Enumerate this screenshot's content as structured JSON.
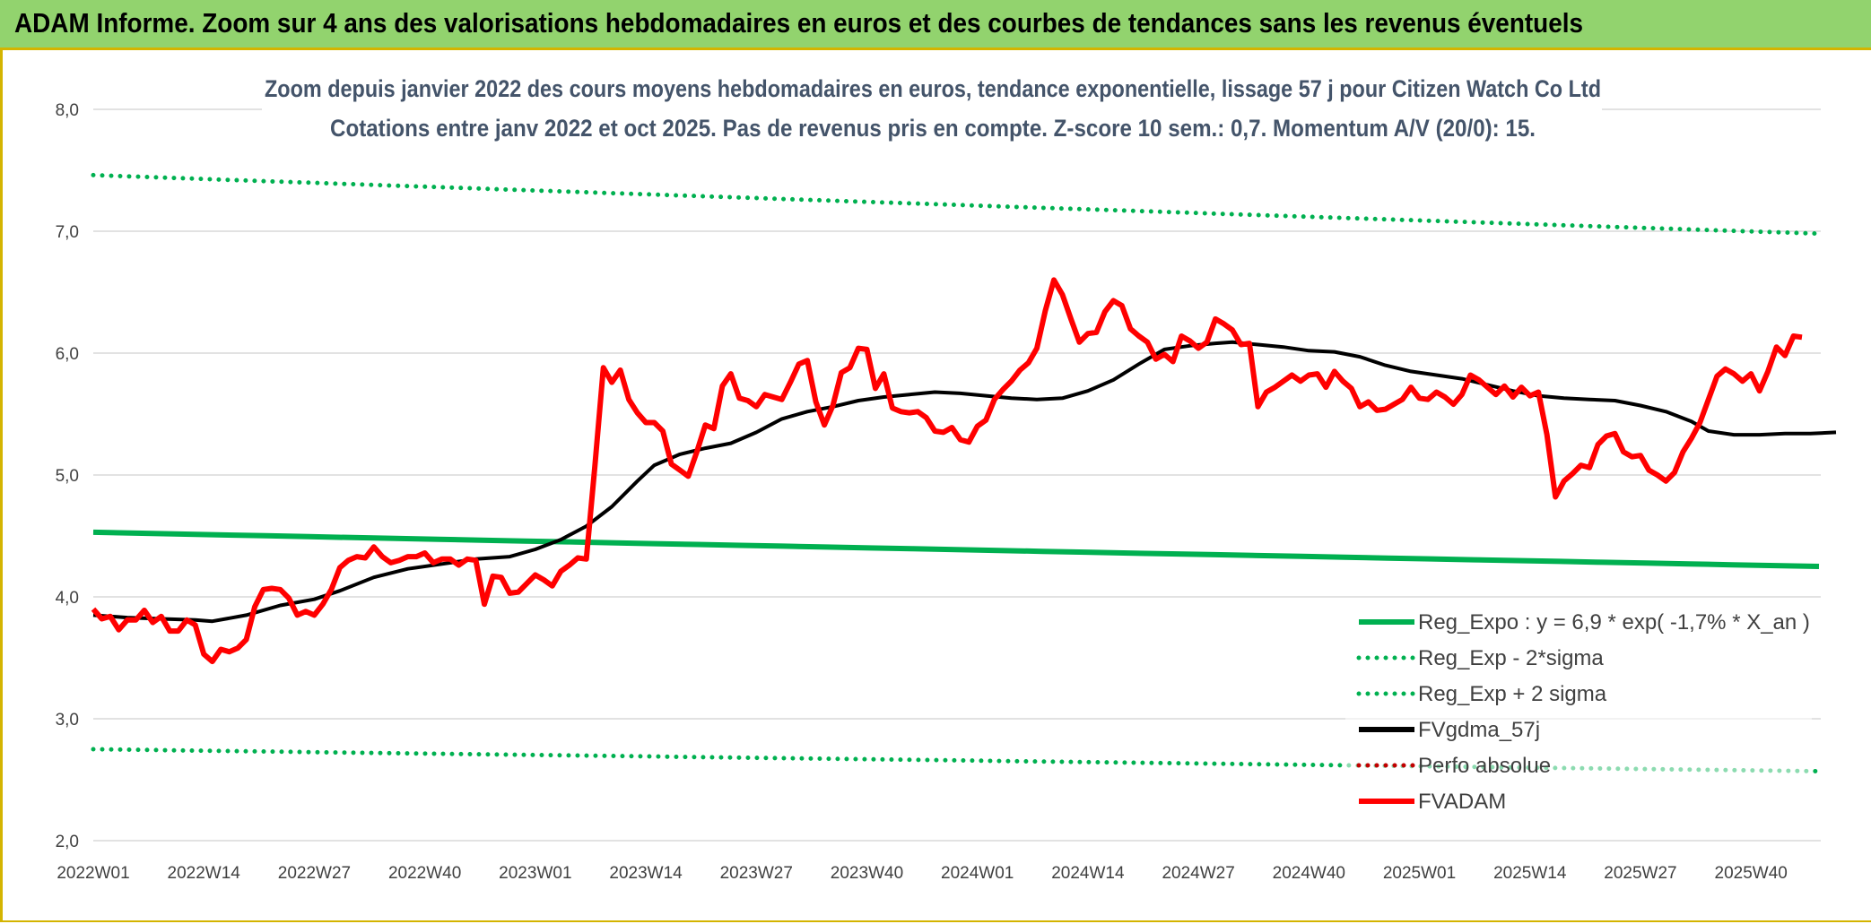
{
  "banner": {
    "title": "ADAM Informe. Zoom sur 4 ans des valorisations hebdomadaires en euros et des courbes de tendances sans les revenus éventuels"
  },
  "colors": {
    "banner_bg": "#92d36e",
    "accent_border": "#d4b400",
    "trend_green": "#00b050",
    "smooth_black": "#000000",
    "price_red": "#ff0000",
    "title_text": "#44546a"
  },
  "chart_data": {
    "type": "line",
    "title_line1": "Zoom depuis janvier 2022 des cours moyens hebdomadaires en euros, tendance exponentielle, lissage 57 j pour Citizen Watch Co Ltd",
    "title_line2": "Cotations entre janv 2022 et oct 2025. Pas de revenus pris en compte. Z-score 10 sem.: 0,7. Momentum A/V (20/0): 15.",
    "xlabel": "",
    "ylabel": "",
    "ylim": [
      2.0,
      8.0
    ],
    "y_ticks": [
      "2,0",
      "3,0",
      "4,0",
      "5,0",
      "6,0",
      "7,0",
      "8,0"
    ],
    "x_ticks": [
      "2022W01",
      "2022W14",
      "2022W27",
      "2022W40",
      "2023W01",
      "2023W14",
      "2023W27",
      "2023W40",
      "2024W01",
      "2024W14",
      "2024W27",
      "2024W40",
      "2025W01",
      "2025W14",
      "2025W27",
      "2025W40"
    ],
    "weeks_total": 203,
    "grid": "horizontal",
    "legend_position": "bottom-right",
    "series": [
      {
        "name": "Reg_Expo : y = 6,9 * exp( -1,7% *  X_an )",
        "style": "solid",
        "color": "#00b050",
        "start": 4.53,
        "end": 4.25
      },
      {
        "name": "Reg_Exp - 2*sigma",
        "style": "dotted",
        "color": "#00b050",
        "start": 2.75,
        "end": 2.57
      },
      {
        "name": "Reg_Exp + 2 sigma",
        "style": "dotted",
        "color": "#00b050",
        "start": 7.46,
        "end": 6.98
      },
      {
        "name": "FVgdma_57j",
        "style": "solid",
        "color": "#000000",
        "points": [
          [
            0,
            3.85
          ],
          [
            4,
            3.83
          ],
          [
            8,
            3.82
          ],
          [
            12,
            3.81
          ],
          [
            14,
            3.8
          ],
          [
            18,
            3.85
          ],
          [
            22,
            3.93
          ],
          [
            26,
            3.98
          ],
          [
            29,
            4.05
          ],
          [
            33,
            4.16
          ],
          [
            37,
            4.23
          ],
          [
            41,
            4.27
          ],
          [
            45,
            4.31
          ],
          [
            49,
            4.33
          ],
          [
            52,
            4.39
          ],
          [
            55,
            4.47
          ],
          [
            58,
            4.58
          ],
          [
            61,
            4.74
          ],
          [
            64,
            4.95
          ],
          [
            66,
            5.08
          ],
          [
            69,
            5.17
          ],
          [
            72,
            5.22
          ],
          [
            75,
            5.26
          ],
          [
            78,
            5.35
          ],
          [
            81,
            5.46
          ],
          [
            84,
            5.52
          ],
          [
            87,
            5.56
          ],
          [
            90,
            5.61
          ],
          [
            93,
            5.64
          ],
          [
            96,
            5.66
          ],
          [
            99,
            5.68
          ],
          [
            102,
            5.67
          ],
          [
            105,
            5.65
          ],
          [
            108,
            5.63
          ],
          [
            111,
            5.62
          ],
          [
            114,
            5.63
          ],
          [
            117,
            5.69
          ],
          [
            120,
            5.78
          ],
          [
            123,
            5.91
          ],
          [
            126,
            6.03
          ],
          [
            129,
            6.06
          ],
          [
            132,
            6.08
          ],
          [
            134,
            6.09
          ],
          [
            137,
            6.07
          ],
          [
            140,
            6.05
          ],
          [
            143,
            6.02
          ],
          [
            146,
            6.01
          ],
          [
            149,
            5.97
          ],
          [
            152,
            5.9
          ],
          [
            155,
            5.85
          ],
          [
            158,
            5.82
          ],
          [
            161,
            5.79
          ],
          [
            164,
            5.74
          ],
          [
            167,
            5.69
          ],
          [
            170,
            5.65
          ],
          [
            173,
            5.63
          ],
          [
            176,
            5.62
          ],
          [
            179,
            5.61
          ],
          [
            182,
            5.57
          ],
          [
            185,
            5.52
          ],
          [
            188,
            5.44
          ],
          [
            190,
            5.36
          ],
          [
            193,
            5.33
          ],
          [
            196,
            5.33
          ],
          [
            199,
            5.34
          ],
          [
            202,
            5.34
          ],
          [
            205,
            5.35
          ]
        ]
      },
      {
        "name": "Perfo absolue",
        "style": "dotted",
        "color": "#c00000",
        "hidden": true
      },
      {
        "name": "FVADAM",
        "style": "solid",
        "color": "#ff0000",
        "points": [
          [
            0,
            3.9
          ],
          [
            1,
            3.82
          ],
          [
            2,
            3.84
          ],
          [
            3,
            3.73
          ],
          [
            4,
            3.81
          ],
          [
            5,
            3.81
          ],
          [
            6,
            3.89
          ],
          [
            7,
            3.79
          ],
          [
            8,
            3.84
          ],
          [
            9,
            3.72
          ],
          [
            10,
            3.72
          ],
          [
            11,
            3.81
          ],
          [
            12,
            3.77
          ],
          [
            13,
            3.53
          ],
          [
            14,
            3.47
          ],
          [
            15,
            3.57
          ],
          [
            16,
            3.55
          ],
          [
            17,
            3.58
          ],
          [
            18,
            3.65
          ],
          [
            19,
            3.92
          ],
          [
            20,
            4.06
          ],
          [
            21,
            4.07
          ],
          [
            22,
            4.06
          ],
          [
            23,
            3.99
          ],
          [
            24,
            3.85
          ],
          [
            25,
            3.88
          ],
          [
            26,
            3.85
          ],
          [
            27,
            3.94
          ],
          [
            28,
            4.06
          ],
          [
            29,
            4.24
          ],
          [
            30,
            4.3
          ],
          [
            31,
            4.33
          ],
          [
            32,
            4.32
          ],
          [
            33,
            4.41
          ],
          [
            34,
            4.33
          ],
          [
            35,
            4.28
          ],
          [
            36,
            4.3
          ],
          [
            37,
            4.33
          ],
          [
            38,
            4.33
          ],
          [
            39,
            4.36
          ],
          [
            40,
            4.28
          ],
          [
            41,
            4.31
          ],
          [
            42,
            4.31
          ],
          [
            43,
            4.26
          ],
          [
            44,
            4.31
          ],
          [
            45,
            4.3
          ],
          [
            46,
            3.94
          ],
          [
            47,
            4.17
          ],
          [
            48,
            4.16
          ],
          [
            49,
            4.03
          ],
          [
            50,
            4.04
          ],
          [
            51,
            4.11
          ],
          [
            52,
            4.18
          ],
          [
            53,
            4.14
          ],
          [
            54,
            4.09
          ],
          [
            55,
            4.21
          ],
          [
            56,
            4.26
          ],
          [
            57,
            4.32
          ],
          [
            58,
            4.31
          ],
          [
            59,
            5.07
          ],
          [
            60,
            5.88
          ],
          [
            61,
            5.76
          ],
          [
            62,
            5.86
          ],
          [
            63,
            5.62
          ],
          [
            64,
            5.51
          ],
          [
            65,
            5.43
          ],
          [
            66,
            5.43
          ],
          [
            67,
            5.36
          ],
          [
            68,
            5.09
          ],
          [
            69,
            5.04
          ],
          [
            70,
            4.99
          ],
          [
            71,
            5.19
          ],
          [
            72,
            5.41
          ],
          [
            73,
            5.38
          ],
          [
            74,
            5.73
          ],
          [
            75,
            5.83
          ],
          [
            76,
            5.63
          ],
          [
            77,
            5.61
          ],
          [
            78,
            5.56
          ],
          [
            79,
            5.66
          ],
          [
            80,
            5.64
          ],
          [
            81,
            5.62
          ],
          [
            82,
            5.76
          ],
          [
            83,
            5.91
          ],
          [
            84,
            5.94
          ],
          [
            85,
            5.6
          ],
          [
            86,
            5.41
          ],
          [
            87,
            5.57
          ],
          [
            88,
            5.84
          ],
          [
            89,
            5.88
          ],
          [
            90,
            6.04
          ],
          [
            91,
            6.03
          ],
          [
            92,
            5.71
          ],
          [
            93,
            5.83
          ],
          [
            94,
            5.55
          ],
          [
            95,
            5.52
          ],
          [
            96,
            5.51
          ],
          [
            97,
            5.52
          ],
          [
            98,
            5.47
          ],
          [
            99,
            5.36
          ],
          [
            100,
            5.35
          ],
          [
            101,
            5.39
          ],
          [
            102,
            5.29
          ],
          [
            103,
            5.27
          ],
          [
            104,
            5.4
          ],
          [
            105,
            5.45
          ],
          [
            106,
            5.62
          ],
          [
            107,
            5.7
          ],
          [
            108,
            5.77
          ],
          [
            109,
            5.86
          ],
          [
            110,
            5.92
          ],
          [
            111,
            6.04
          ],
          [
            112,
            6.35
          ],
          [
            113,
            6.6
          ],
          [
            114,
            6.48
          ],
          [
            115,
            6.28
          ],
          [
            116,
            6.09
          ],
          [
            117,
            6.16
          ],
          [
            118,
            6.17
          ],
          [
            119,
            6.34
          ],
          [
            120,
            6.43
          ],
          [
            121,
            6.39
          ],
          [
            122,
            6.2
          ],
          [
            123,
            6.14
          ],
          [
            124,
            6.09
          ],
          [
            125,
            5.95
          ],
          [
            126,
            5.99
          ],
          [
            127,
            5.93
          ],
          [
            128,
            6.14
          ],
          [
            129,
            6.1
          ],
          [
            130,
            6.04
          ],
          [
            131,
            6.09
          ],
          [
            132,
            6.28
          ],
          [
            133,
            6.24
          ],
          [
            134,
            6.19
          ],
          [
            135,
            6.07
          ],
          [
            136,
            6.08
          ],
          [
            137,
            5.56
          ],
          [
            138,
            5.68
          ],
          [
            139,
            5.72
          ],
          [
            140,
            5.77
          ],
          [
            141,
            5.82
          ],
          [
            142,
            5.77
          ],
          [
            143,
            5.82
          ],
          [
            144,
            5.83
          ],
          [
            145,
            5.72
          ],
          [
            146,
            5.85
          ],
          [
            147,
            5.77
          ],
          [
            148,
            5.71
          ],
          [
            149,
            5.56
          ],
          [
            150,
            5.6
          ],
          [
            151,
            5.53
          ],
          [
            152,
            5.54
          ],
          [
            153,
            5.58
          ],
          [
            154,
            5.62
          ],
          [
            155,
            5.72
          ],
          [
            156,
            5.63
          ],
          [
            157,
            5.62
          ],
          [
            158,
            5.68
          ],
          [
            159,
            5.64
          ],
          [
            160,
            5.58
          ],
          [
            161,
            5.66
          ],
          [
            162,
            5.82
          ],
          [
            163,
            5.78
          ],
          [
            164,
            5.72
          ],
          [
            165,
            5.66
          ],
          [
            166,
            5.73
          ],
          [
            167,
            5.64
          ],
          [
            168,
            5.72
          ],
          [
            169,
            5.65
          ],
          [
            170,
            5.68
          ],
          [
            171,
            5.33
          ],
          [
            172,
            4.82
          ],
          [
            173,
            4.95
          ],
          [
            174,
            5.01
          ],
          [
            175,
            5.08
          ],
          [
            176,
            5.06
          ],
          [
            177,
            5.25
          ],
          [
            178,
            5.32
          ],
          [
            179,
            5.34
          ],
          [
            180,
            5.19
          ],
          [
            181,
            5.15
          ],
          [
            182,
            5.16
          ],
          [
            183,
            5.04
          ],
          [
            184,
            5.0
          ],
          [
            185,
            4.95
          ],
          [
            186,
            5.02
          ],
          [
            187,
            5.19
          ],
          [
            188,
            5.3
          ],
          [
            189,
            5.43
          ],
          [
            190,
            5.62
          ],
          [
            191,
            5.81
          ],
          [
            192,
            5.87
          ],
          [
            193,
            5.83
          ],
          [
            194,
            5.77
          ],
          [
            195,
            5.83
          ],
          [
            196,
            5.69
          ],
          [
            197,
            5.85
          ],
          [
            198,
            6.05
          ],
          [
            199,
            5.98
          ],
          [
            200,
            6.14
          ],
          [
            201,
            6.13
          ]
        ]
      }
    ]
  }
}
